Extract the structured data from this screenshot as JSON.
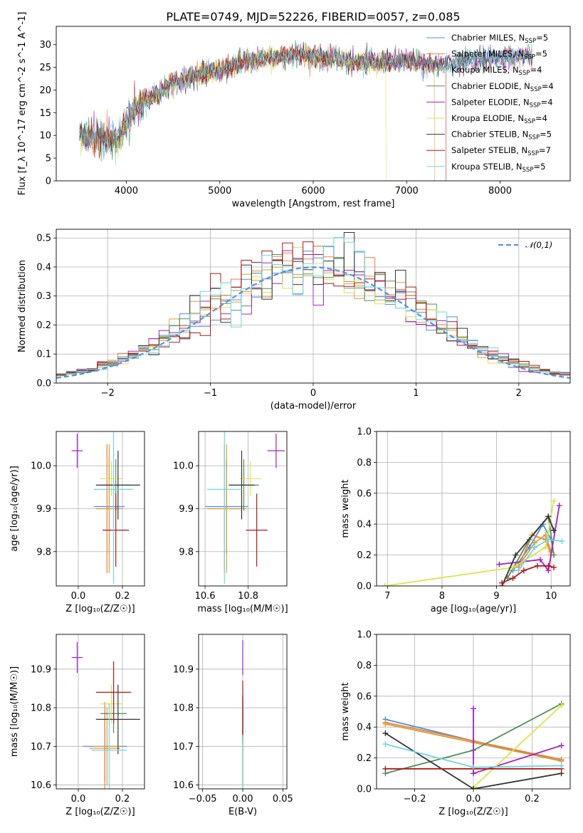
{
  "figure": {
    "title": "PLATE=0749, MJD=52226, FIBERID=0057, z=0.085"
  },
  "series_styles": [
    {
      "name": "Chabrier MILES",
      "nssp": "5",
      "color": "#4a90d9"
    },
    {
      "name": "Salpeter MILES",
      "nssp": "5",
      "color": "#f07e3a"
    },
    {
      "name": "Kroupa MILES",
      "nssp": "4",
      "color": "#d5a03a"
    },
    {
      "name": "Chabrier ELODIE",
      "nssp": "4",
      "color": "#4e8f5a"
    },
    {
      "name": "Salpeter ELODIE",
      "nssp": "4",
      "color": "#a020c8"
    },
    {
      "name": "Kroupa ELODIE",
      "nssp": "4",
      "color": "#dde24a"
    },
    {
      "name": "Chabrier STELIB",
      "nssp": "5",
      "color": "#333333"
    },
    {
      "name": "Salpeter STELIB",
      "nssp": "7",
      "color": "#b01818"
    },
    {
      "name": "Kroupa STELIB",
      "nssp": "5",
      "color": "#6fd6e0"
    }
  ],
  "chart_data": [
    {
      "id": "spectrum",
      "type": "line",
      "title": "PLATE=0749, MJD=52226, FIBERID=0057, z=0.085",
      "xlabel": "wavelength [Angstrom, rest frame]",
      "ylabel": "Flux [f_λ 10^-17 erg cm^-2 s^-1 A^-1]",
      "xlim": [
        3250,
        8750
      ],
      "ylim": [
        0,
        34
      ],
      "xticks": [
        4000,
        5000,
        6000,
        7000,
        8000
      ],
      "yticks": [
        0,
        5,
        10,
        15,
        20,
        25,
        30
      ],
      "grid": false,
      "legend": "top-right",
      "continuum": {
        "x": [
          3500,
          3700,
          3900,
          4000,
          4150,
          4300,
          4500,
          4700,
          4900,
          5100,
          5300,
          5500,
          5700,
          5900,
          6100,
          6300,
          6500,
          6700,
          6900,
          7100,
          7300,
          7500,
          7700,
          7900,
          8100,
          8300
        ],
        "y": [
          10,
          9.5,
          9,
          13,
          17,
          18.5,
          21.5,
          23,
          24,
          25,
          26.5,
          27,
          27.5,
          28,
          27,
          26.5,
          26,
          26,
          26.5,
          26.2,
          25.5,
          26,
          26.5,
          27,
          27.2,
          27.5
        ]
      }
    },
    {
      "id": "residuals",
      "type": "line",
      "xlabel": "(data-model)/error",
      "ylabel": "Normed distribution",
      "xlim": [
        -2.5,
        2.5
      ],
      "ylim": [
        0,
        0.53
      ],
      "xticks": [
        -2,
        -1,
        0,
        1,
        2
      ],
      "yticks": [
        0.0,
        0.1,
        0.2,
        0.3,
        0.4,
        0.5
      ],
      "grid": true,
      "legend": "top-right",
      "reference_label": "𝒩(0,1)",
      "histograms": {
        "bins_from": -2.5,
        "bin_width": 0.1
      }
    },
    {
      "id": "z-vs-age",
      "type": "scatter",
      "xlabel": "Z [log₁₀(Z/Z☉)]",
      "ylabel": "age  [log₁₀(age/yr)]",
      "xlim": [
        -0.1,
        0.3
      ],
      "ylim": [
        9.72,
        10.08
      ],
      "xticks": [
        0.0,
        0.2
      ],
      "yticks": [
        9.8,
        9.9,
        10.0
      ],
      "grid": true,
      "points": [
        {
          "x": 0.14,
          "y": 9.905,
          "xerr": 0.07,
          "yerr": 0.11
        },
        {
          "x": 0.13,
          "y": 9.9,
          "xerr": 0.05,
          "yerr": 0.15
        },
        {
          "x": 0.14,
          "y": 9.9,
          "xerr": 0.06,
          "yerr": 0.15
        },
        {
          "x": 0.17,
          "y": 9.955,
          "xerr": 0.07,
          "yerr": 0.06
        },
        {
          "x": -0.005,
          "y": 10.035,
          "xerr": 0.025,
          "yerr": 0.04
        },
        {
          "x": 0.15,
          "y": 9.97,
          "xerr": 0.05,
          "yerr": 0.04
        },
        {
          "x": 0.18,
          "y": 9.955,
          "xerr": 0.1,
          "yerr": 0.08
        },
        {
          "x": 0.17,
          "y": 9.85,
          "xerr": 0.06,
          "yerr": 0.085
        },
        {
          "x": 0.16,
          "y": 9.945,
          "xerr": 0.09,
          "yerr": 0.22
        }
      ]
    },
    {
      "id": "mass-vs-age",
      "type": "scatter",
      "xlabel": "mass [log₁₀(M/M☉)]",
      "ylabel": "",
      "xlim": [
        10.57,
        10.98
      ],
      "ylim": [
        9.72,
        10.08
      ],
      "xticks": [
        10.6,
        10.8
      ],
      "yticks": [
        9.8,
        9.9,
        10.0
      ],
      "grid": true,
      "points": [
        {
          "x": 10.7,
          "y": 9.905,
          "xerr": 0.1,
          "yerr": 0.11
        },
        {
          "x": 10.69,
          "y": 9.9,
          "xerr": 0.08,
          "yerr": 0.15
        },
        {
          "x": 10.7,
          "y": 9.9,
          "xerr": 0.09,
          "yerr": 0.15
        },
        {
          "x": 10.78,
          "y": 9.955,
          "xerr": 0.07,
          "yerr": 0.06
        },
        {
          "x": 10.93,
          "y": 10.035,
          "xerr": 0.04,
          "yerr": 0.04
        },
        {
          "x": 10.81,
          "y": 9.97,
          "xerr": 0.05,
          "yerr": 0.04
        },
        {
          "x": 10.77,
          "y": 9.955,
          "xerr": 0.06,
          "yerr": 0.08
        },
        {
          "x": 10.84,
          "y": 9.85,
          "xerr": 0.05,
          "yerr": 0.085
        },
        {
          "x": 10.69,
          "y": 9.945,
          "xerr": 0.08,
          "yerr": 0.22
        }
      ]
    },
    {
      "id": "age-vs-weight",
      "type": "line",
      "xlabel": "age  [log₁₀(age/yr)]",
      "ylabel": "mass weight",
      "xlim": [
        6.8,
        10.35
      ],
      "ylim": [
        0,
        1.0
      ],
      "xticks": [
        7,
        8,
        9,
        10
      ],
      "yticks": [
        0.0,
        0.2,
        0.4,
        0.6,
        0.8,
        1.0
      ],
      "grid": true,
      "series": [
        {
          "x": [
            9.3,
            9.6,
            9.85,
            10.0
          ],
          "y": [
            0.1,
            0.25,
            0.4,
            0.3
          ]
        },
        {
          "x": [
            9.4,
            9.65,
            9.9,
            10.0
          ],
          "y": [
            0.12,
            0.33,
            0.3,
            0.2
          ]
        },
        {
          "x": [
            9.45,
            9.7,
            9.9,
            10.0
          ],
          "y": [
            0.15,
            0.28,
            0.33,
            0.22
          ]
        },
        {
          "x": [
            9.2,
            9.6,
            9.95,
            10.05
          ],
          "y": [
            0.05,
            0.3,
            0.45,
            0.2
          ]
        },
        {
          "x": [
            9.05,
            9.8,
            9.95,
            10.15
          ],
          "y": [
            0.14,
            0.17,
            0.1,
            0.52
          ]
        },
        {
          "x": [
            6.95,
            9.3,
            9.9,
            10.05
          ],
          "y": [
            0.0,
            0.12,
            0.25,
            0.55
          ]
        },
        {
          "x": [
            9.1,
            9.35,
            9.95,
            10.05
          ],
          "y": [
            0.0,
            0.2,
            0.45,
            0.36
          ]
        },
        {
          "x": [
            9.1,
            9.3,
            9.5,
            9.75,
            9.95,
            10.05
          ],
          "y": [
            0.02,
            0.05,
            0.1,
            0.13,
            0.13,
            0.12
          ]
        },
        {
          "x": [
            9.4,
            9.7,
            9.95,
            10.2
          ],
          "y": [
            0.1,
            0.25,
            0.3,
            0.29
          ]
        }
      ]
    },
    {
      "id": "z-vs-mass",
      "type": "scatter",
      "xlabel": "Z [log₁₀(Z/Z☉)]",
      "ylabel": "mass [log₁₀(M/M☉)]",
      "xlim": [
        -0.1,
        0.3
      ],
      "ylim": [
        10.59,
        10.99
      ],
      "xticks": [
        0.0,
        0.2
      ],
      "yticks": [
        10.6,
        10.7,
        10.8,
        10.9
      ],
      "grid": true,
      "points": [
        {
          "x": 0.12,
          "y": 10.7,
          "xerr": 0.1,
          "yerr": 0.09
        },
        {
          "x": 0.12,
          "y": 10.695,
          "xerr": 0.07,
          "yerr": 0.12
        },
        {
          "x": 0.13,
          "y": 10.7,
          "xerr": 0.06,
          "yerr": 0.1
        },
        {
          "x": 0.16,
          "y": 10.785,
          "xerr": 0.06,
          "yerr": 0.05
        },
        {
          "x": -0.005,
          "y": 10.93,
          "xerr": 0.025,
          "yerr": 0.04
        },
        {
          "x": 0.15,
          "y": 10.81,
          "xerr": 0.05,
          "yerr": 0.05
        },
        {
          "x": 0.18,
          "y": 10.77,
          "xerr": 0.1,
          "yerr": 0.09
        },
        {
          "x": 0.16,
          "y": 10.84,
          "xerr": 0.08,
          "yerr": 0.08
        },
        {
          "x": 0.14,
          "y": 10.69,
          "xerr": 0.08,
          "yerr": 0.12
        }
      ]
    },
    {
      "id": "ebv-vs-mass",
      "type": "scatter",
      "xlabel": "E(B-V)",
      "ylabel": "",
      "xlim": [
        -0.055,
        0.055
      ],
      "ylim": [
        10.59,
        10.99
      ],
      "xticks": [
        -0.05,
        0.0,
        0.05
      ],
      "yticks": [
        10.6,
        10.7,
        10.8,
        10.9
      ],
      "grid": true,
      "points": [
        {
          "x": 0.0,
          "y": 10.7,
          "xerr": 0.0,
          "yerr": 0.09
        },
        {
          "x": 0.0,
          "y": 10.695,
          "xerr": 0.0,
          "yerr": 0.12
        },
        {
          "x": 0.0,
          "y": 10.7,
          "xerr": 0.0,
          "yerr": 0.1
        },
        {
          "x": 0.0,
          "y": 10.785,
          "xerr": 0.0,
          "yerr": 0.05
        },
        {
          "x": 0.0,
          "y": 10.93,
          "xerr": 0.0,
          "yerr": 0.045
        },
        {
          "x": 0.0,
          "y": 10.81,
          "xerr": 0.0,
          "yerr": 0.05
        },
        {
          "x": 0.0,
          "y": 10.77,
          "xerr": 0.0,
          "yerr": 0.06
        },
        {
          "x": 0.0,
          "y": 10.8,
          "xerr": 0.0,
          "yerr": 0.07
        },
        {
          "x": 0.0,
          "y": 10.66,
          "xerr": 0.0,
          "yerr": 0.07
        }
      ]
    },
    {
      "id": "z-vs-weight",
      "type": "line",
      "xlabel": "Z [log₁₀(Z/Z☉)]",
      "ylabel": "mass weight",
      "xlim": [
        -0.33,
        0.33
      ],
      "ylim": [
        0,
        1.0
      ],
      "xticks": [
        -0.2,
        0.0,
        0.2
      ],
      "yticks": [
        0.0,
        0.2,
        0.4,
        0.6,
        0.8,
        1.0
      ],
      "grid": true,
      "series": [
        {
          "x": [
            -0.3,
            0.0,
            0.3
          ],
          "y": [
            0.45,
            0.31,
            0.18
          ]
        },
        {
          "x": [
            -0.3,
            0.0,
            0.3
          ],
          "y": [
            0.43,
            0.31,
            0.19
          ]
        },
        {
          "x": [
            -0.3,
            0.0,
            0.3
          ],
          "y": [
            0.42,
            0.3,
            0.18
          ]
        },
        {
          "x": [
            -0.3,
            0.0,
            0.3
          ],
          "y": [
            0.1,
            0.25,
            0.55
          ]
        },
        {
          "x": [
            0.0,
            0.0,
            0.3
          ],
          "y": [
            0.52,
            0.1,
            0.28
          ]
        },
        {
          "x": [
            0.0,
            0.3
          ],
          "y": [
            0.01,
            0.54
          ]
        },
        {
          "x": [
            -0.3,
            0.0,
            0.3
          ],
          "y": [
            0.36,
            0.0,
            0.1
          ]
        },
        {
          "x": [
            -0.3,
            0.0,
            0.3
          ],
          "y": [
            0.13,
            0.13,
            0.13
          ]
        },
        {
          "x": [
            -0.3,
            0.0,
            0.3
          ],
          "y": [
            0.29,
            0.14,
            0.15
          ]
        }
      ]
    }
  ]
}
